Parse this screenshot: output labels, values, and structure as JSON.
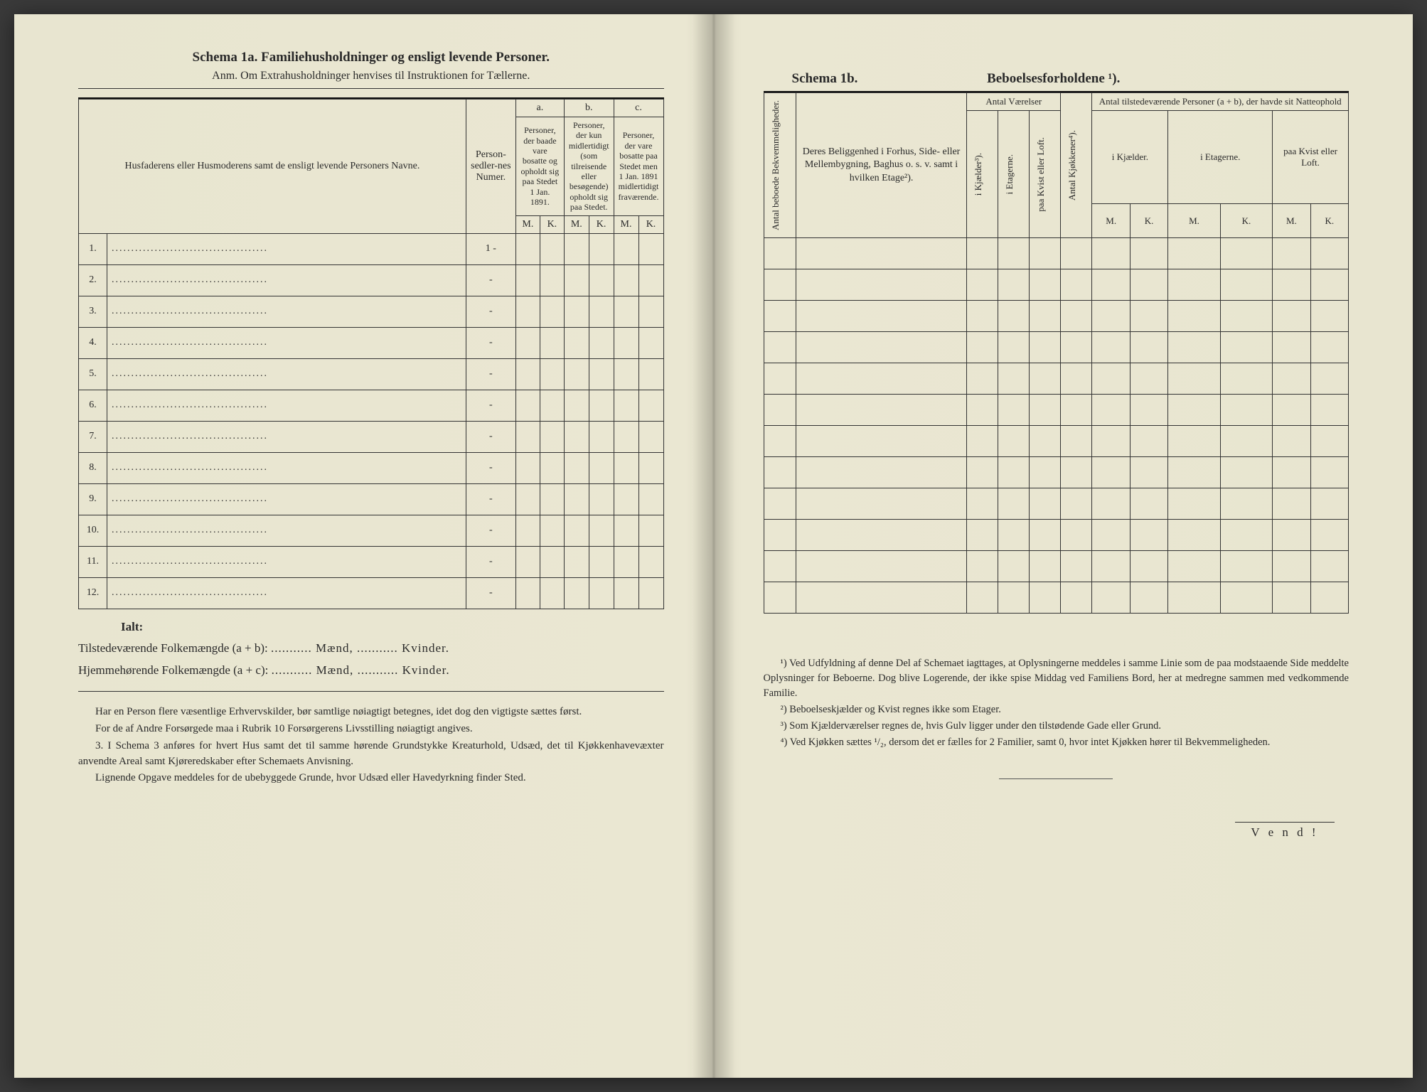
{
  "left": {
    "title": "Schema 1a.  Familiehusholdninger og ensligt levende Personer.",
    "subtitle": "Anm. Om Extrahusholdninger henvises til Instruktionen for Tællerne.",
    "headers": {
      "col_name": "Husfaderens eller Husmoderens samt de ensligt levende Personers Navne.",
      "col_num": "Person-sedler-nes Numer.",
      "group_a": "a.",
      "group_b": "b.",
      "group_c": "c.",
      "desc_a": "Personer, der baade vare bosatte og opholdt sig paa Stedet 1 Jan. 1891.",
      "desc_b": "Personer, der kun midlertidigt (som tilreisende eller besøgende) opholdt sig paa Stedet.",
      "desc_c": "Personer, der vare bosatte paa Stedet men 1 Jan. 1891 midlertidigt fraværende.",
      "M": "M.",
      "K": "K."
    },
    "rows": [
      "1.",
      "2.",
      "3.",
      "4.",
      "5.",
      "6.",
      "7.",
      "8.",
      "9.",
      "10.",
      "11.",
      "12."
    ],
    "ialt": "Ialt:",
    "totals_line1_a": "Tilstedeværende Folkemængde (a + b): ",
    "totals_line2_a": "Hjemmehørende Folkemængde (a + c): ",
    "fill_m": "........... Mænd, ",
    "fill_k": "........... Kvinder.",
    "notes": [
      "Har en Person flere væsentlige Erhvervskilder, bør samtlige nøiagtigt betegnes, idet dog den vigtigste sættes først.",
      "For de af Andre Forsørgede maa i Rubrik 10 Forsørgerens Livsstilling nøiagtigt angives.",
      "3. I Schema 3 anføres for hvert Hus samt det til samme hørende Grundstykke Kreaturhold, Udsæd, det til Kjøkkenhavevæxter anvendte Areal samt Kjøreredskaber efter Schemaets Anvisning.",
      "Lignende Opgave meddeles for de ubebyggede Grunde, hvor Udsæd eller Havedyrkning finder Sted."
    ]
  },
  "right": {
    "title_a": "Schema 1b.",
    "title_b": "Beboelsesforholdene ¹).",
    "headers": {
      "col_bekv": "Antal beboede Bekvemmeligheder.",
      "col_belig": "Deres Beliggenhed i Forhus, Side- eller Mellembygning, Baghus o. s. v. samt i hvilken Etage²).",
      "group_vaer": "Antal Værelser",
      "v_kjaelder": "i Kjælder³).",
      "v_etagerne": "i Etagerne.",
      "v_kvist": "paa Kvist eller Loft.",
      "col_kjok": "Antal Kjøkkener⁴).",
      "group_pers": "Antal tilstedeværende Personer (a + b), der havde sit Natteophold",
      "p_kjael": "i Kjælder.",
      "p_etag": "i Etagerne.",
      "p_kvist": "paa Kvist eller Loft.",
      "M": "M.",
      "K": "K."
    },
    "row_count": 12,
    "footnotes": [
      "¹) Ved Udfyldning af denne Del af Schemaet iagttages, at Oplysningerne meddeles i samme Linie som de paa modstaaende Side meddelte Oplysninger for Beboerne. Dog blive Logerende, der ikke spise Middag ved Familiens Bord, her at medregne sammen med vedkommende Familie.",
      "²) Beboelseskjælder og Kvist regnes ikke som Etager.",
      "³) Som Kjælderværelser regnes de, hvis Gulv ligger under den tilstødende Gade eller Grund.",
      "⁴) Ved Kjøkken sættes ¹/₂, dersom det er fælles for 2 Familier, samt 0, hvor intet Kjøkken hører til Bekvemmeligheden."
    ],
    "vend": "V e n d !"
  },
  "colors": {
    "paper": "#e8e5d0",
    "ink": "#2a2a2a",
    "rule": "#333333"
  }
}
